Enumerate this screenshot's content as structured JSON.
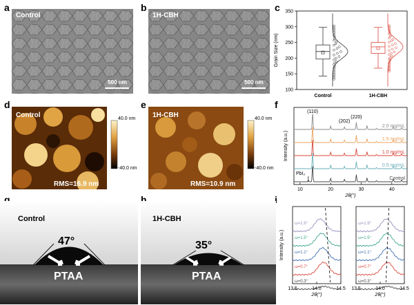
{
  "panel_labels": [
    "a",
    "b",
    "c",
    "d",
    "e",
    "f",
    "g",
    "h",
    "i"
  ],
  "sem": {
    "control_label": "Control",
    "cbh_label": "1H-CBH",
    "scalebar_text": "500 nm"
  },
  "afm": {
    "control_label": "Control",
    "cbh_label": "1H-CBH",
    "control_rms": "RMS=16.9 nm",
    "cbh_rms": "RMS=10.9 nm",
    "colorbar_max": "40.0 nm",
    "colorbar_min": "-40.0 nm"
  },
  "contact_angle": {
    "control_label": "Control",
    "cbh_label": "1H-CBH",
    "control_angle": "47°",
    "cbh_angle": "35°",
    "substrate_label": "PTAA"
  },
  "chart_data": [
    {
      "panel": "c",
      "type": "box",
      "ylabel": "Grain Size (nm)",
      "ylim": [
        100,
        350
      ],
      "yticks": [
        100,
        150,
        200,
        250,
        300,
        350
      ],
      "categories": [
        "Control",
        "1H-CBH"
      ],
      "series": [
        {
          "name": "Control",
          "color": "#333333",
          "whisker_low": 143,
          "q1": 197,
          "median": 221,
          "q3": 242,
          "whisker_high": 298,
          "mean": 218
        },
        {
          "name": "1H-CBH",
          "color": "#d9453a",
          "whisker_low": 168,
          "q1": 215,
          "median": 236,
          "q3": 250,
          "whisker_high": 298,
          "mean": 232
        }
      ]
    },
    {
      "panel": "f",
      "type": "line",
      "xlabel": "2θ(°)",
      "ylabel": "Intensity (a.u.)",
      "xlim": [
        8,
        45
      ],
      "xticks": [
        10,
        20,
        30,
        40
      ],
      "peak_labels": [
        "(110)",
        "(202)",
        "(220)",
        "PbI₂"
      ],
      "series": [
        {
          "name": "2.0 mg/mL",
          "color": "#8a8a8a"
        },
        {
          "name": "1.5 mg/mL",
          "color": "#e8a05c"
        },
        {
          "name": "1.0 mg/mL",
          "color": "#d9453a"
        },
        {
          "name": "0.5 mg/mL",
          "color": "#6aaeb8"
        },
        {
          "name": "Control",
          "color": "#444444"
        }
      ]
    },
    {
      "panel": "i",
      "type": "line",
      "xlabel": "2θ(°)",
      "ylabel": "Intensity (a.u.)",
      "xlim": [
        13.5,
        14.5
      ],
      "xticks": [
        13.5,
        14.0,
        14.5
      ],
      "series": [
        {
          "name": "ω=1.9°",
          "color": "#9b8dbd"
        },
        {
          "name": "ω=1.5°",
          "color": "#3aa58f"
        },
        {
          "name": "ω=1.1°",
          "color": "#3e6fb0"
        },
        {
          "name": "ω=0.7°",
          "color": "#d9453a"
        },
        {
          "name": "ω=0.3°",
          "color": "#444444"
        }
      ]
    }
  ]
}
